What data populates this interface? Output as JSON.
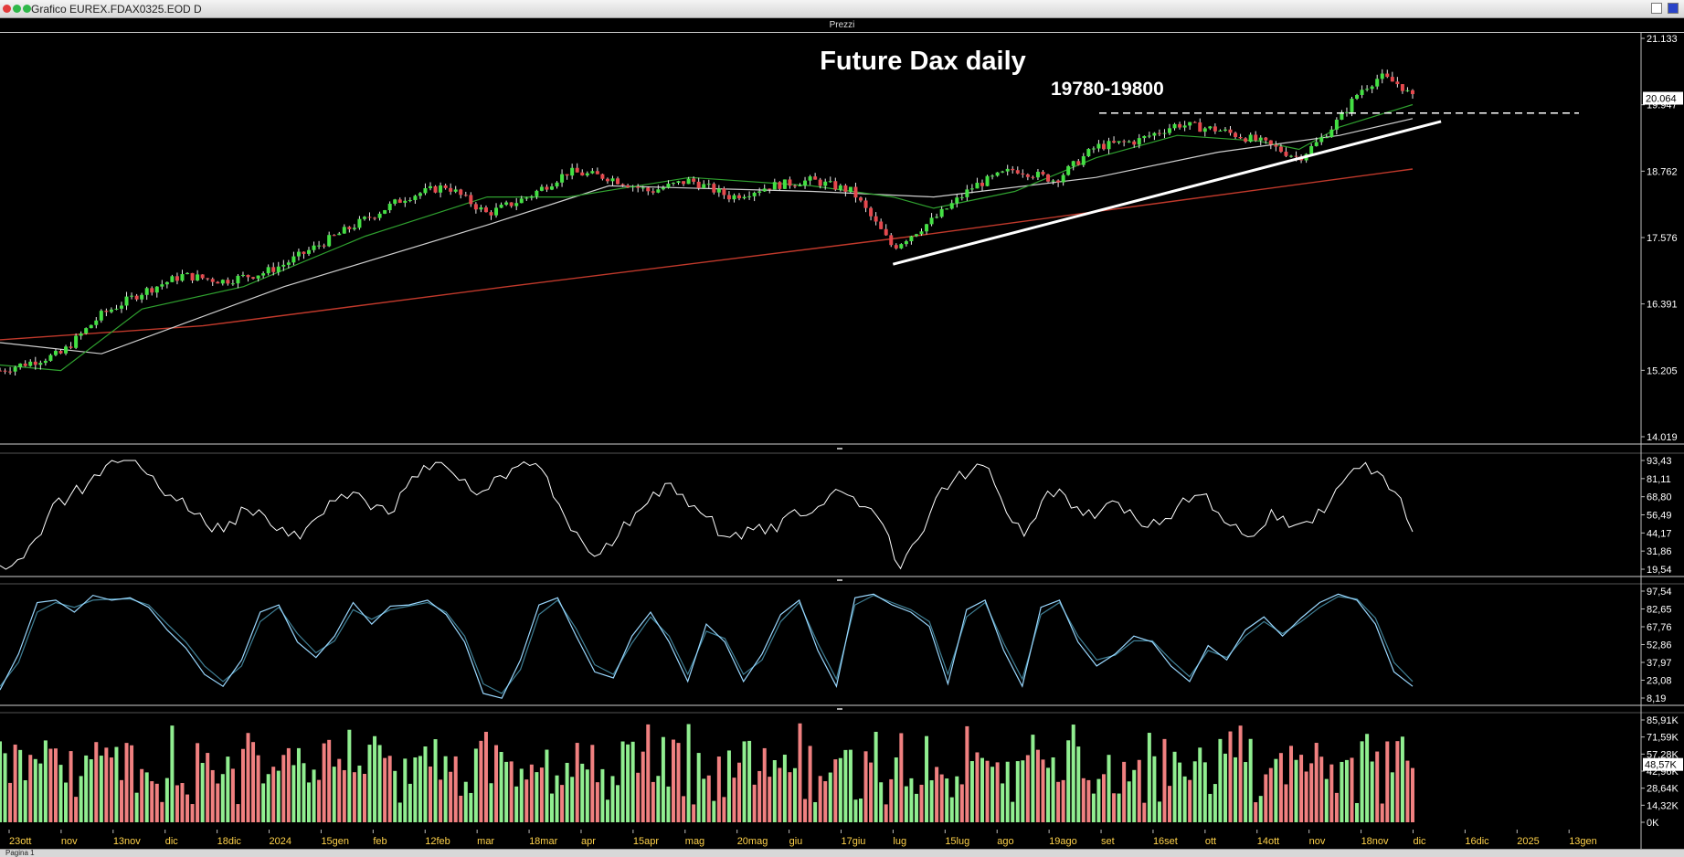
{
  "window": {
    "title": "Grafico EUREX.FDAX0325.EOD D",
    "colors": {
      "dot1": "#e23b3b",
      "dot2": "#2fb84a",
      "dot3": "#2fb84a",
      "dot4": "#2a44c8"
    }
  },
  "main_panel_title": "Prezzi",
  "footer": {
    "page_tab": "Pagina 1"
  },
  "chart_data": [
    {
      "type": "candlestick",
      "title": "Future Dax daily",
      "annotation": "19780-19800",
      "price_ticks": [
        "21.133",
        "19.947",
        "18.762",
        "17.576",
        "16.391",
        "15.205",
        "14.019"
      ],
      "last_price": "20.064",
      "ylim": [
        14019,
        21133
      ],
      "x_labels": [
        "23ott",
        "nov",
        "13nov",
        "dic",
        "18dic",
        "2024",
        "15gen",
        "feb",
        "12feb",
        "mar",
        "18mar",
        "apr",
        "15apr",
        "mag",
        "20mag",
        "giu",
        "17giu",
        "lug",
        "15lug",
        "ago",
        "19ago",
        "set",
        "16set",
        "ott",
        "14ott",
        "nov",
        "18nov",
        "dic",
        "16dic",
        "2025",
        "13gen"
      ],
      "trend": [
        {
          "x": 0,
          "y": 15200
        },
        {
          "x": 3,
          "y": 15500
        },
        {
          "x": 5,
          "y": 16200
        },
        {
          "x": 7,
          "y": 16600
        },
        {
          "x": 9,
          "y": 16900
        },
        {
          "x": 11,
          "y": 16800
        },
        {
          "x": 13,
          "y": 16950
        },
        {
          "x": 14,
          "y": 17100
        },
        {
          "x": 16,
          "y": 17500
        },
        {
          "x": 18,
          "y": 17900
        },
        {
          "x": 20,
          "y": 18300
        },
        {
          "x": 22,
          "y": 18500
        },
        {
          "x": 24,
          "y": 18000
        },
        {
          "x": 26,
          "y": 18300
        },
        {
          "x": 28,
          "y": 18750
        },
        {
          "x": 30,
          "y": 18650
        },
        {
          "x": 32,
          "y": 18400
        },
        {
          "x": 34,
          "y": 18600
        },
        {
          "x": 36,
          "y": 18300
        },
        {
          "x": 38,
          "y": 18500
        },
        {
          "x": 40,
          "y": 18600
        },
        {
          "x": 42,
          "y": 18400
        },
        {
          "x": 44,
          "y": 17400
        },
        {
          "x": 46,
          "y": 17900
        },
        {
          "x": 48,
          "y": 18500
        },
        {
          "x": 50,
          "y": 18800
        },
        {
          "x": 52,
          "y": 18600
        },
        {
          "x": 54,
          "y": 19200
        },
        {
          "x": 56,
          "y": 19300
        },
        {
          "x": 58,
          "y": 19600
        },
        {
          "x": 60,
          "y": 19500
        },
        {
          "x": 62,
          "y": 19300
        },
        {
          "x": 64,
          "y": 19000
        },
        {
          "x": 65,
          "y": 19300
        },
        {
          "x": 66,
          "y": 19700
        },
        {
          "x": 67,
          "y": 20200
        },
        {
          "x": 68,
          "y": 20450
        },
        {
          "x": 69,
          "y": 20300
        },
        {
          "x": 69.6,
          "y": 20064
        }
      ],
      "horizontal_level": 19800,
      "trendline": [
        {
          "x": 44,
          "y": 17100
        },
        {
          "x": 71,
          "y": 19650
        }
      ],
      "ma_red": [
        {
          "x": 0,
          "y": 15750
        },
        {
          "x": 10,
          "y": 16000
        },
        {
          "x": 25,
          "y": 16700
        },
        {
          "x": 45,
          "y": 17600
        },
        {
          "x": 69.6,
          "y": 18800
        }
      ],
      "ma_white": [
        {
          "x": 0,
          "y": 15700
        },
        {
          "x": 5,
          "y": 15500
        },
        {
          "x": 14,
          "y": 16700
        },
        {
          "x": 24,
          "y": 17800
        },
        {
          "x": 30,
          "y": 18500
        },
        {
          "x": 40,
          "y": 18400
        },
        {
          "x": 46,
          "y": 18300
        },
        {
          "x": 54,
          "y": 18650
        },
        {
          "x": 60,
          "y": 19100
        },
        {
          "x": 66,
          "y": 19400
        },
        {
          "x": 69.6,
          "y": 19700
        }
      ],
      "ma_green": [
        {
          "x": 0,
          "y": 15300
        },
        {
          "x": 3,
          "y": 15200
        },
        {
          "x": 7,
          "y": 16300
        },
        {
          "x": 12,
          "y": 16700
        },
        {
          "x": 18,
          "y": 17600
        },
        {
          "x": 24,
          "y": 18300
        },
        {
          "x": 28,
          "y": 18300
        },
        {
          "x": 34,
          "y": 18650
        },
        {
          "x": 40,
          "y": 18500
        },
        {
          "x": 44,
          "y": 18300
        },
        {
          "x": 46,
          "y": 18100
        },
        {
          "x": 50,
          "y": 18400
        },
        {
          "x": 54,
          "y": 19000
        },
        {
          "x": 58,
          "y": 19400
        },
        {
          "x": 62,
          "y": 19300
        },
        {
          "x": 64,
          "y": 19150
        },
        {
          "x": 66,
          "y": 19550
        },
        {
          "x": 69.6,
          "y": 19950
        }
      ],
      "colors": {
        "up": "#43e043",
        "down": "#e5484d",
        "ma_red": "#c0392b",
        "ma_white": "#cfcfcf",
        "ma_green": "#2fa02f"
      }
    },
    {
      "type": "line",
      "ticks": [
        "93,43",
        "81,11",
        "68,80",
        "56,49",
        "44,17",
        "31,86",
        "19,54"
      ],
      "ylim": [
        19.54,
        93.43
      ],
      "values": [
        22,
        26,
        40,
        64,
        70,
        78,
        90,
        95,
        88,
        75,
        66,
        57,
        45,
        52,
        60,
        56,
        48,
        40,
        55,
        66,
        72,
        60,
        57,
        75,
        90,
        92,
        80,
        70,
        82,
        88,
        90,
        82,
        55,
        38,
        30,
        42,
        58,
        72,
        78,
        62,
        55,
        42,
        40,
        50,
        45,
        60,
        58,
        70,
        70,
        62,
        50,
        20,
        40,
        68,
        80,
        86,
        88,
        58,
        42,
        66,
        74,
        62,
        54,
        66,
        60,
        48,
        54,
        68,
        70,
        58,
        50,
        42,
        60,
        48,
        52,
        58,
        78,
        88,
        86,
        72,
        45
      ]
    },
    {
      "type": "line",
      "ticks": [
        "97,54",
        "82,65",
        "67,76",
        "52,86",
        "37,97",
        "23,08",
        "8,19"
      ],
      "ylim": [
        8.19,
        97.54
      ],
      "k": [
        15,
        45,
        88,
        90,
        80,
        94,
        90,
        92,
        84,
        65,
        50,
        28,
        18,
        40,
        80,
        86,
        55,
        42,
        60,
        88,
        70,
        85,
        86,
        90,
        78,
        55,
        12,
        8,
        40,
        86,
        92,
        60,
        30,
        25,
        60,
        80,
        55,
        22,
        70,
        55,
        22,
        45,
        78,
        90,
        48,
        18,
        92,
        95,
        86,
        80,
        68,
        20,
        82,
        90,
        48,
        18,
        84,
        90,
        55,
        35,
        45,
        60,
        55,
        35,
        22,
        52,
        40,
        65,
        76,
        60,
        75,
        88,
        95,
        90,
        70,
        30,
        18
      ],
      "d": [
        18,
        38,
        80,
        88,
        84,
        90,
        91,
        91,
        86,
        70,
        55,
        35,
        22,
        35,
        72,
        84,
        62,
        46,
        56,
        82,
        74,
        82,
        85,
        88,
        80,
        60,
        20,
        12,
        32,
        78,
        90,
        66,
        36,
        28,
        54,
        76,
        60,
        28,
        64,
        58,
        28,
        40,
        72,
        88,
        54,
        24,
        86,
        94,
        88,
        82,
        72,
        28,
        76,
        88,
        54,
        24,
        78,
        88,
        60,
        40,
        44,
        56,
        56,
        40,
        26,
        48,
        42,
        60,
        72,
        62,
        72,
        84,
        93,
        91,
        75,
        38,
        22
      ],
      "colors": {
        "k": "#9ad8ff",
        "d": "#3f7f95"
      }
    },
    {
      "type": "bar",
      "ticks": [
        "85,91K",
        "71,59K",
        "57,28K",
        "42,96K",
        "28,64K",
        "14,32K",
        "0K"
      ],
      "last_volume": "48,57K",
      "ylim": [
        0,
        85910
      ],
      "colors": {
        "up": "#90ee90",
        "down": "#f08080"
      }
    }
  ]
}
